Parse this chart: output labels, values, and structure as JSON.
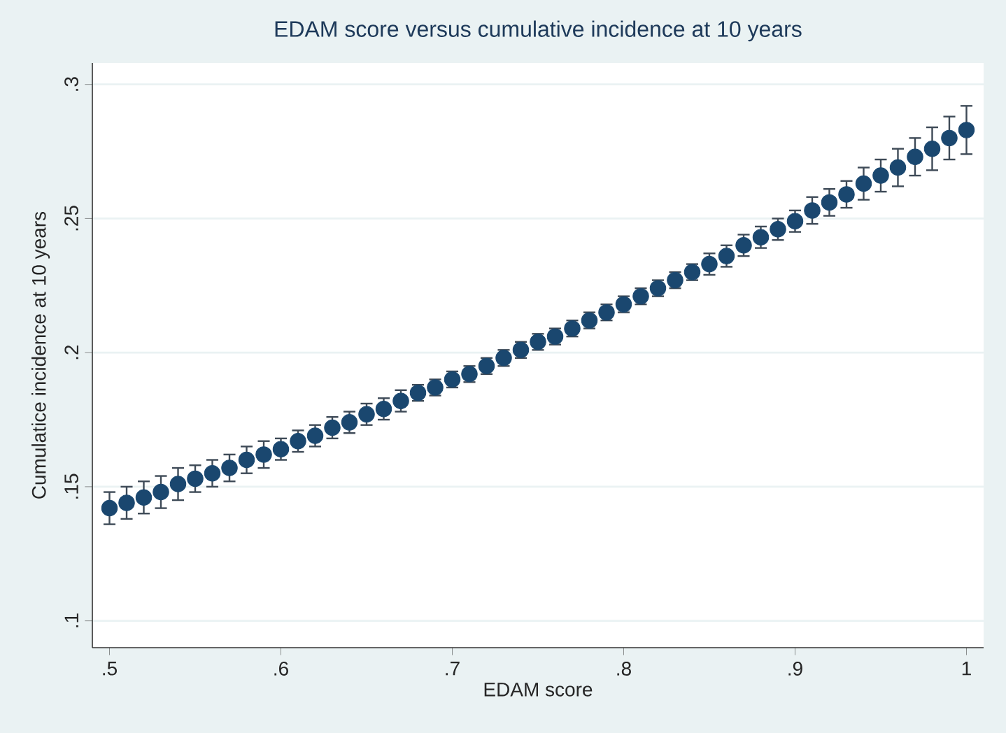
{
  "chart_data": {
    "type": "scatter",
    "title": "EDAM score versus cumulative incidence at 10 years",
    "xlabel": "EDAM score",
    "ylabel": "Cumulatice incidence at 10 years",
    "x": [
      0.5,
      0.51,
      0.52,
      0.53,
      0.54,
      0.55,
      0.56,
      0.57,
      0.58,
      0.59,
      0.6,
      0.61,
      0.62,
      0.63,
      0.64,
      0.65,
      0.66,
      0.67,
      0.68,
      0.69,
      0.7,
      0.71,
      0.72,
      0.73,
      0.74,
      0.75,
      0.76,
      0.77,
      0.78,
      0.79,
      0.8,
      0.81,
      0.82,
      0.83,
      0.84,
      0.85,
      0.86,
      0.87,
      0.88,
      0.89,
      0.9,
      0.91,
      0.92,
      0.93,
      0.94,
      0.95,
      0.96,
      0.97,
      0.98,
      0.99,
      1.0
    ],
    "series": [
      {
        "color": "#1a476f",
        "values": [
          0.142,
          0.144,
          0.146,
          0.148,
          0.151,
          0.153,
          0.155,
          0.157,
          0.16,
          0.162,
          0.164,
          0.167,
          0.169,
          0.172,
          0.174,
          0.177,
          0.179,
          0.182,
          0.185,
          0.187,
          0.19,
          0.192,
          0.195,
          0.198,
          0.201,
          0.204,
          0.206,
          0.209,
          0.212,
          0.215,
          0.218,
          0.221,
          0.224,
          0.227,
          0.23,
          0.233,
          0.236,
          0.24,
          0.243,
          0.246,
          0.249,
          0.253,
          0.256,
          0.259,
          0.263,
          0.266,
          0.269,
          0.273,
          0.276,
          0.28,
          0.283
        ],
        "errors": [
          0.006,
          0.006,
          0.006,
          0.006,
          0.006,
          0.005,
          0.005,
          0.005,
          0.005,
          0.005,
          0.004,
          0.004,
          0.004,
          0.004,
          0.004,
          0.004,
          0.004,
          0.004,
          0.003,
          0.003,
          0.003,
          0.003,
          0.003,
          0.003,
          0.003,
          0.003,
          0.003,
          0.003,
          0.003,
          0.003,
          0.003,
          0.003,
          0.003,
          0.003,
          0.003,
          0.004,
          0.004,
          0.004,
          0.004,
          0.004,
          0.004,
          0.005,
          0.005,
          0.005,
          0.006,
          0.006,
          0.007,
          0.007,
          0.008,
          0.008,
          0.009
        ]
      }
    ],
    "xlim": [
      0.49,
      1.01
    ],
    "ylim": [
      0.09,
      0.308
    ],
    "xticks": [
      {
        "value": 0.5,
        "label": ".5"
      },
      {
        "value": 0.6,
        "label": ".6"
      },
      {
        "value": 0.7,
        "label": ".7"
      },
      {
        "value": 0.8,
        "label": ".8"
      },
      {
        "value": 0.9,
        "label": ".9"
      },
      1
    ],
    "yticks": [
      {
        "value": 0.1,
        "label": ".1"
      },
      {
        "value": 0.15,
        "label": ".15"
      },
      {
        "value": 0.2,
        "label": ".2"
      },
      {
        "value": 0.25,
        "label": ".25"
      },
      {
        "value": 0.3,
        "label": ".3"
      }
    ],
    "grid": "y",
    "marker": "circle"
  }
}
